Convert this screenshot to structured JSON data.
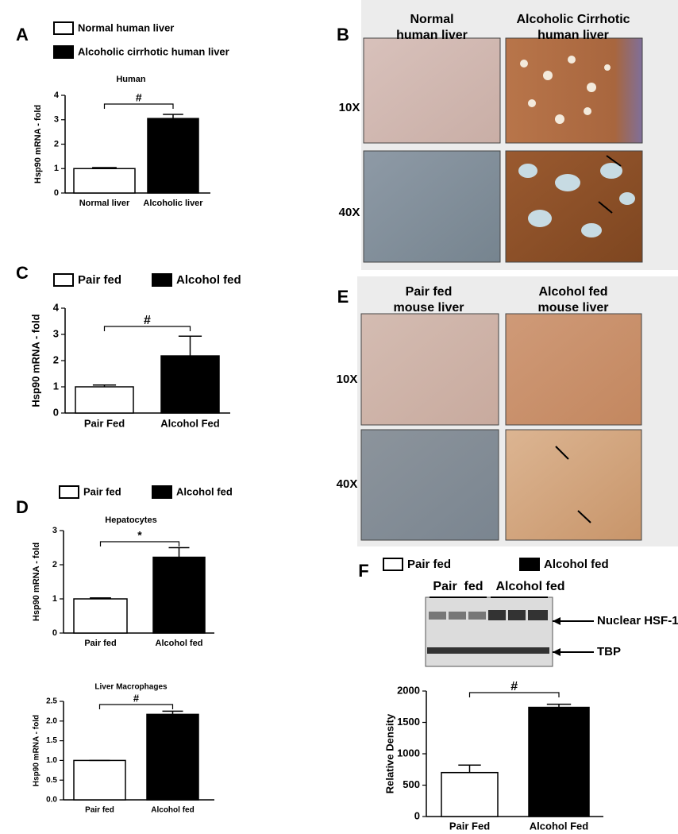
{
  "chart_data": [
    {
      "type": "bar",
      "panel_label": "A",
      "title": "Human",
      "y_label": "Hsp90 mRNA - fold",
      "categories": [
        "Normal liver",
        "Alcoholic liver"
      ],
      "series": [
        {
          "name": "Normal human liver",
          "color": "#ffffff",
          "values": [
            1.0,
            null
          ],
          "errors": [
            0.04,
            null
          ]
        },
        {
          "name": "Alcoholic cirrhotic human liver",
          "color": "#000000",
          "values": [
            null,
            3.05
          ],
          "errors": [
            null,
            0.17
          ]
        }
      ],
      "ylim": [
        0,
        4
      ],
      "yticks": [
        0,
        1,
        2,
        3,
        4
      ],
      "annotation": "#"
    },
    {
      "type": "bar",
      "panel_label": "C",
      "y_label": "Hsp90 mRNA - fold",
      "categories": [
        "Pair Fed",
        "Alcohol Fed"
      ],
      "series": [
        {
          "name": "Pair fed",
          "color": "#ffffff",
          "values": [
            1.0,
            null
          ],
          "errors": [
            0.07,
            null
          ]
        },
        {
          "name": "Alcohol fed",
          "color": "#000000",
          "values": [
            null,
            2.18
          ],
          "errors": [
            null,
            0.75
          ]
        }
      ],
      "ylim": [
        0,
        4
      ],
      "yticks": [
        0,
        1,
        2,
        3,
        4
      ],
      "annotation": "#"
    },
    {
      "type": "bar",
      "panel_label": "D",
      "title": "Hepatocytes",
      "y_label": "Hsp90 mRNA - fold",
      "categories": [
        "Pair fed",
        "Alcohol fed"
      ],
      "series": [
        {
          "name": "Pair fed",
          "color": "#ffffff",
          "values": [
            1.0,
            null
          ],
          "errors": [
            0.03,
            null
          ]
        },
        {
          "name": "Alcohol fed",
          "color": "#000000",
          "values": [
            null,
            2.22
          ],
          "errors": [
            null,
            0.28
          ]
        }
      ],
      "ylim": [
        0,
        3
      ],
      "yticks": [
        0,
        1,
        2,
        3
      ],
      "annotation": "*"
    },
    {
      "type": "bar",
      "title": "Liver Macrophages",
      "y_label": "Hsp90 mRNA - fold",
      "categories": [
        "Pair fed",
        "Alcohol fed"
      ],
      "series": [
        {
          "values": [
            1.0,
            null
          ],
          "color": "#ffffff",
          "errors": [
            0,
            null
          ]
        },
        {
          "values": [
            null,
            2.17
          ],
          "color": "#000000",
          "errors": [
            null,
            0.08
          ]
        }
      ],
      "ylim": [
        0,
        2.5
      ],
      "yticks": [
        {
          "value": 0,
          "label": "0.0"
        },
        {
          "value": 0.5,
          "label": "0.5"
        },
        {
          "value": 1,
          "label": "1.0"
        },
        {
          "value": 1.5,
          "label": "1.5"
        },
        {
          "value": 2,
          "label": "2.0"
        },
        {
          "value": 2.5,
          "label": "2.5"
        }
      ],
      "annotation": "#"
    },
    {
      "type": "bar",
      "panel_label": "F",
      "y_label": "Relative Density",
      "categories": [
        "Pair Fed",
        "Alcohol Fed"
      ],
      "series": [
        {
          "name": "Pair fed",
          "color": "#ffffff",
          "values": [
            700,
            null
          ],
          "errors": [
            120,
            null
          ]
        },
        {
          "name": "Alcohol fed",
          "color": "#000000",
          "values": [
            null,
            1740
          ],
          "errors": [
            null,
            50
          ]
        }
      ],
      "ylim": [
        0,
        2000
      ],
      "yticks": [
        0,
        500,
        1000,
        1500,
        2000
      ],
      "annotation": "#"
    }
  ],
  "image_panels": [
    {
      "panel_label": "B",
      "column_headers": [
        [
          "Normal",
          "human liver"
        ],
        [
          "Alcoholic Cirrhotic",
          "human liver"
        ]
      ],
      "row_labels": [
        "10X",
        "40X"
      ]
    },
    {
      "panel_label": "E",
      "column_headers": [
        [
          "Pair fed",
          "mouse liver"
        ],
        [
          "Alcohol fed",
          "mouse liver"
        ]
      ],
      "row_labels": [
        "10X",
        "40X"
      ]
    }
  ],
  "blot": {
    "lane_groups": [
      "Pair  fed",
      "Alcohol fed"
    ],
    "bands": [
      "Nuclear HSF-1",
      "TBP"
    ]
  }
}
